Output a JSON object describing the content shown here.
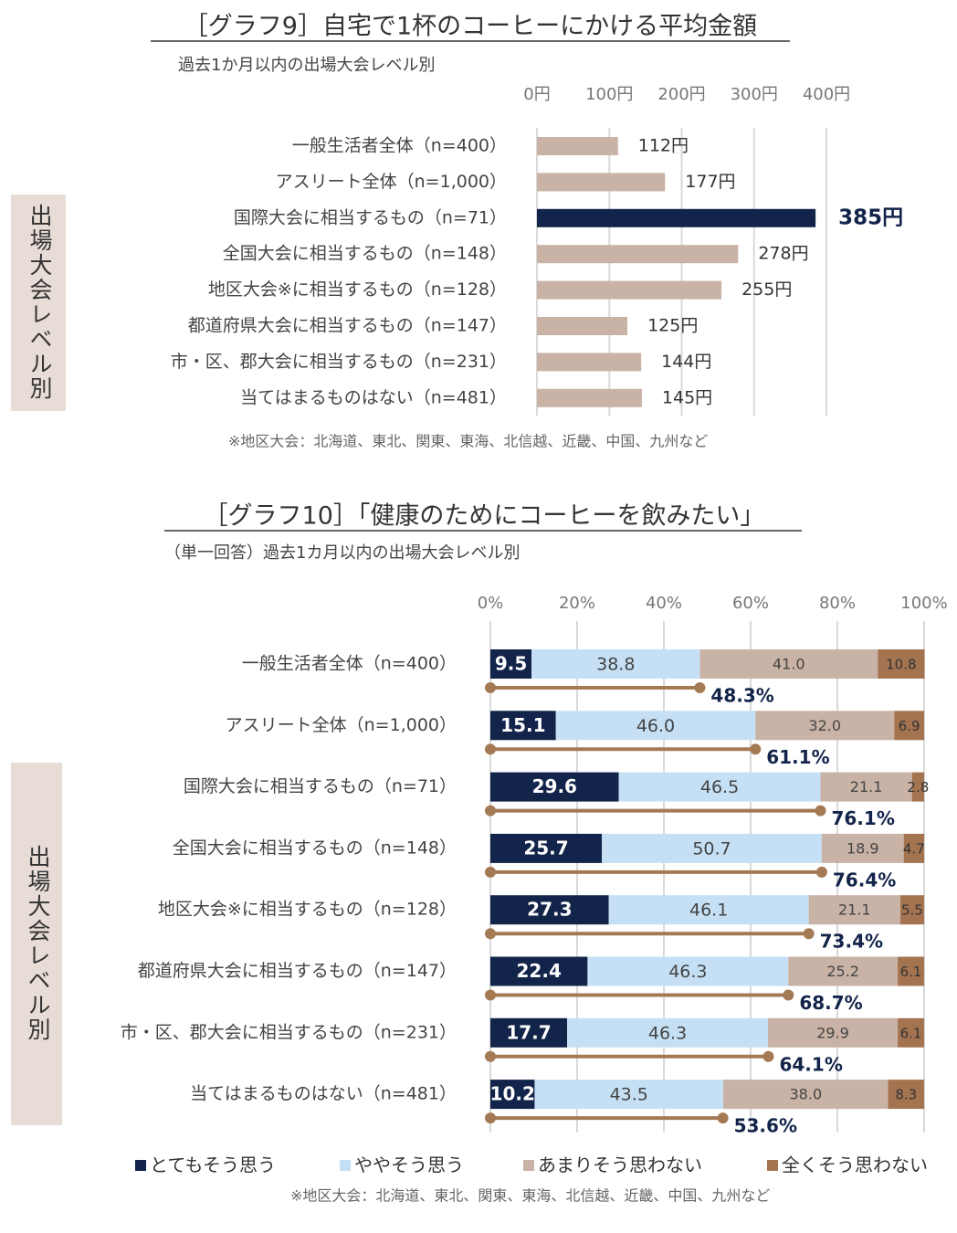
{
  "chart_data": [
    {
      "type": "bar",
      "title": "［グラフ9］自宅で1杯のコーヒーにかける平均金額",
      "subtitle": "過去1か月以内の出場大会レベル別",
      "y_axis_label": "出場大会レベル別",
      "note": "※地区大会：北海道、東北、関東、東海、北信越、近畿、中国、九州など",
      "categories": [
        "一般生活者全体（n=400）",
        "アスリート全体（n=1,000）",
        "国際大会に相当するもの（n=71）",
        "全国大会に相当するもの（n=148）",
        "地区大会※に相当するもの（n=128）",
        "都道府県大会に相当するもの（n=147）",
        "市・区、郡大会に相当するもの（n=231）",
        "当てはまるものはない（n=481）"
      ],
      "values": [
        112,
        177,
        385,
        278,
        255,
        125,
        144,
        145
      ],
      "value_labels": [
        "112円",
        "177円",
        "385円",
        "278円",
        "255円",
        "125円",
        "144円",
        "145円"
      ],
      "colors": [
        "#c9b2a6",
        "#c9b2a6",
        "#13244a",
        "#c9b2a6",
        "#c9b2a6",
        "#c9b2a6",
        "#c9b2a6",
        "#c9b2a6"
      ],
      "xlim": [
        0,
        400
      ],
      "xticks": [
        {
          "value": 0,
          "label": "0円"
        },
        {
          "value": 100,
          "label": "100円"
        },
        {
          "value": 200,
          "label": "200円"
        },
        {
          "value": 300,
          "label": "300円"
        },
        {
          "value": 400,
          "label": "400円"
        }
      ],
      "grid": true
    },
    {
      "type": "stacked_bar",
      "title": "［グラフ10］「健康のためにコーヒーを飲みたい」",
      "subtitle": "（単一回答）過去1カ月以内の出場大会レベル別",
      "y_axis_label": "出場大会レベル別",
      "note": "※地区大会：北海道、東北、関東、東海、北信越、近畿、中国、九州など",
      "categories": [
        "一般生活者全体（n=400）",
        "アスリート全体（n=1,000）",
        "国際大会に相当するもの（n=71）",
        "全国大会に相当するもの（n=148）",
        "地区大会※に相当するもの（n=128）",
        "都道府県大会に相当するもの（n=147）",
        "市・区、郡大会に相当するもの（n=231）",
        "当てはまるものはない（n=481）"
      ],
      "series": [
        {
          "name": "とてもそう思う",
          "color": "#13244a",
          "values": [
            9.5,
            15.1,
            29.6,
            25.7,
            27.3,
            22.4,
            17.7,
            10.2
          ]
        },
        {
          "name": "ややそう思う",
          "color": "#c5e0f4",
          "values": [
            38.8,
            46.0,
            46.5,
            50.7,
            46.1,
            46.3,
            46.3,
            43.5
          ],
          "value_labels": [
            "38.8",
            "46.0",
            "46.5",
            "50.7",
            "46.1",
            "46.3",
            "46.3",
            "43.5"
          ]
        },
        {
          "name": "あまりそう思わない",
          "color": "#c9b2a6",
          "values": [
            41.0,
            32.0,
            21.1,
            18.9,
            21.1,
            25.2,
            29.9,
            38.0
          ],
          "value_labels": [
            "41.0",
            "32.0",
            "21.1",
            "18.9",
            "21.1",
            "25.2",
            "29.9",
            "38.0"
          ]
        },
        {
          "name": "全くそう思わない",
          "color": "#a47451",
          "values": [
            10.8,
            6.9,
            2.8,
            4.7,
            5.5,
            6.1,
            6.1,
            8.3
          ]
        }
      ],
      "totals": {
        "color": "#a47a55",
        "values": [
          48.3,
          61.1,
          76.1,
          76.4,
          73.4,
          68.7,
          64.1,
          53.6
        ],
        "value_labels": [
          "48.3%",
          "61.1%",
          "76.1%",
          "76.4%",
          "73.4%",
          "68.7%",
          "64.1%",
          "53.6%"
        ]
      },
      "xlim": [
        0,
        100
      ],
      "xticks": [
        {
          "value": 0,
          "label": "0%"
        },
        {
          "value": 20,
          "label": "20%"
        },
        {
          "value": 40,
          "label": "40%"
        },
        {
          "value": 60,
          "label": "60%"
        },
        {
          "value": 80,
          "label": "80%"
        },
        {
          "value": 100,
          "label": "100%"
        }
      ],
      "grid": true
    }
  ]
}
